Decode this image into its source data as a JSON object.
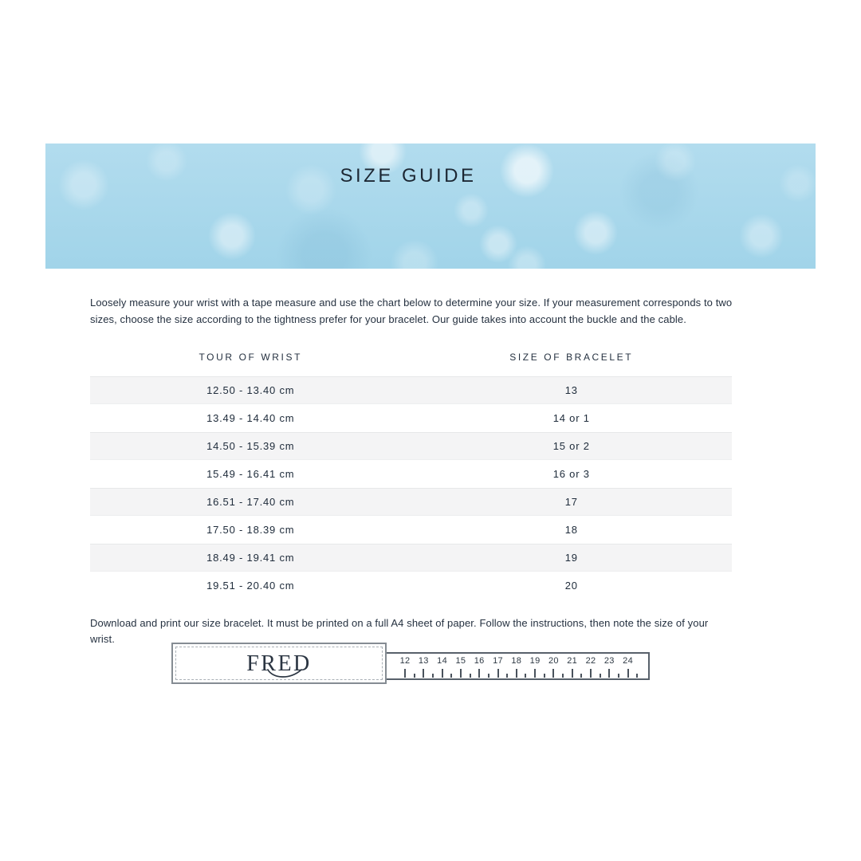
{
  "banner": {
    "title": "SIZE GUIDE",
    "base_color": "#a5d6ea",
    "title_color": "#1c2733"
  },
  "intro": {
    "text": "Loosely measure your wrist with a tape measure and use the chart below to determine your size. If your measurement corresponds to two sizes, choose the size according to the tightness prefer for your bracelet. Our guide takes into account the buckle and the cable."
  },
  "size_table": {
    "headers": [
      "TOUR OF WRIST",
      "SIZE OF BRACELET"
    ],
    "rows": [
      [
        "12.50 - 13.40 cm",
        "13"
      ],
      [
        "13.49 - 14.40 cm",
        "14 or 1"
      ],
      [
        "14.50 - 15.39 cm",
        "15 or 2"
      ],
      [
        "15.49 - 16.41 cm",
        "16 or 3"
      ],
      [
        "16.51 - 17.40 cm",
        "17"
      ],
      [
        "17.50 - 18.39 cm",
        "18"
      ],
      [
        "18.49 - 19.41 cm",
        "19"
      ],
      [
        "19.51 - 20.40 cm",
        "20"
      ]
    ],
    "stripe_color": "#f4f4f5",
    "text_color": "#202d3c"
  },
  "download_note": {
    "text": "Download and print our size bracelet. It must be printed on a full A4 sheet of paper. Follow the instructions, then note the size of your wrist."
  },
  "sizer": {
    "brand": "FRED",
    "ruler_numbers": [
      "12",
      "13",
      "14",
      "15",
      "16",
      "17",
      "18",
      "19",
      "20",
      "21",
      "22",
      "23",
      "24"
    ]
  }
}
